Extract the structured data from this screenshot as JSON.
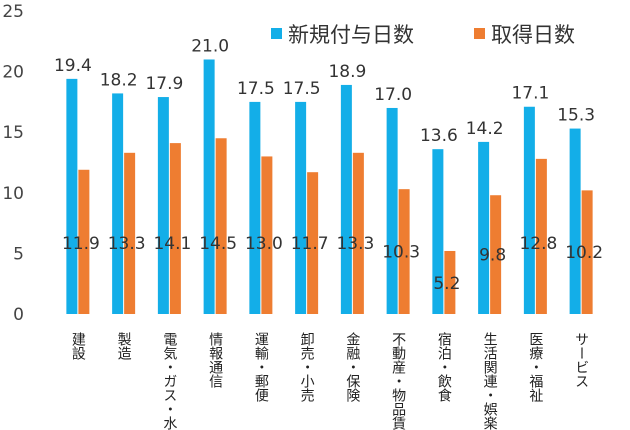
{
  "chart_data": {
    "type": "bar",
    "categories": [
      "建設",
      "製造",
      "電気・ガス・水道",
      "情報通信",
      "運輸・郵便",
      "卸売・小売",
      "金融・保険",
      "不動産・物品賃貸",
      "宿泊・飲食",
      "生活関連・娯楽",
      "医療・福祉",
      "サービス"
    ],
    "series": [
      {
        "name": "新規付与日数",
        "color": "#13aee8",
        "values": [
          19.4,
          18.2,
          17.9,
          21.0,
          17.5,
          17.5,
          18.9,
          17.0,
          13.6,
          14.2,
          17.1,
          15.3
        ]
      },
      {
        "name": "取得日数",
        "color": "#ee7d31",
        "values": [
          11.9,
          13.3,
          14.1,
          14.5,
          13.0,
          11.7,
          13.3,
          10.3,
          5.2,
          9.8,
          12.8,
          10.2
        ]
      }
    ],
    "ylim": [
      0,
      25
    ],
    "yticks": [
      0,
      5,
      10,
      15,
      20,
      25
    ],
    "grid": false,
    "legend_position": "top-right",
    "data_label_precision": 1
  }
}
